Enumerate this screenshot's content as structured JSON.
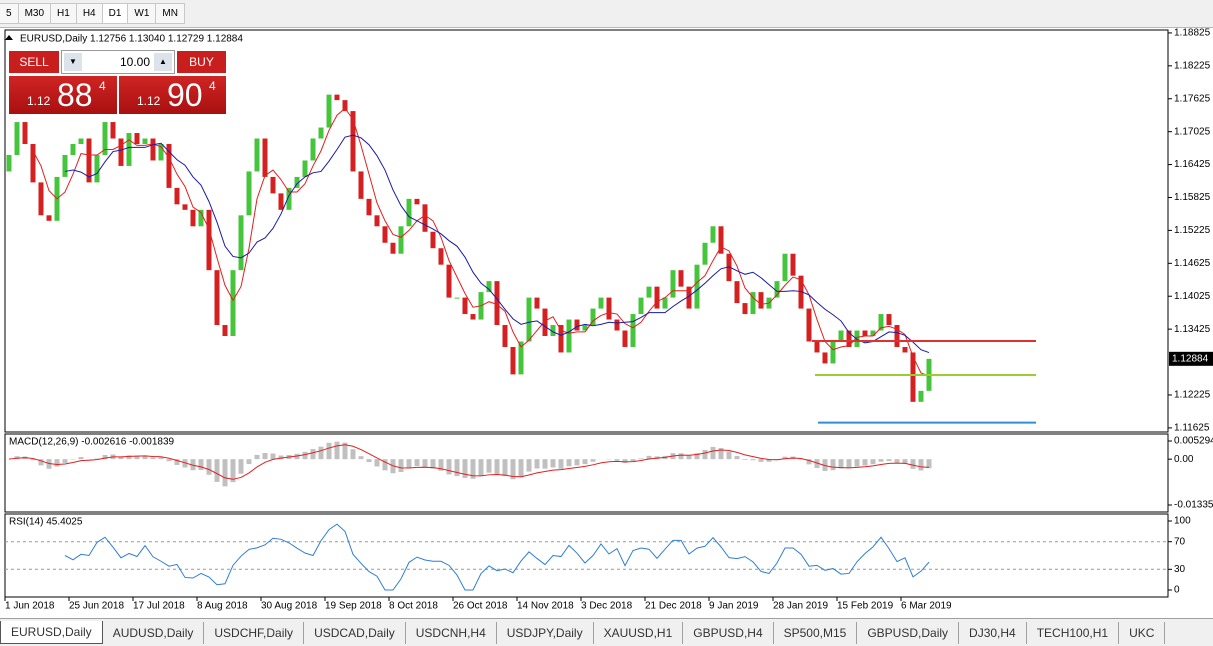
{
  "toolbar": {
    "timeframes": [
      "5",
      "M30",
      "H1",
      "H4",
      "D1",
      "W1",
      "MN"
    ]
  },
  "trade_panel": {
    "sell": "SELL",
    "buy": "BUY",
    "lot": "10.00",
    "bid": {
      "big": "1.12",
      "main": "88",
      "small": "4"
    },
    "ask": {
      "big": "1.12",
      "main": "90",
      "small": "4"
    }
  },
  "chart_data": {
    "type": "candlestick",
    "header": "EURUSD,Daily  1.12756 1.13040 1.12729 1.12884",
    "first_open": 1.163,
    "close": [
      1.166,
      1.172,
      1.168,
      1.161,
      1.155,
      1.154,
      1.162,
      1.166,
      1.168,
      1.169,
      1.161,
      1.166,
      1.172,
      1.169,
      1.164,
      1.17,
      1.168,
      1.169,
      1.165,
      1.168,
      1.16,
      1.157,
      1.156,
      1.153,
      1.156,
      1.145,
      1.135,
      1.133,
      1.145,
      1.155,
      1.163,
      1.169,
      1.162,
      1.159,
      1.156,
      1.16,
      1.162,
      1.165,
      1.169,
      1.171,
      1.177,
      1.176,
      1.174,
      1.163,
      1.158,
      1.155,
      1.153,
      1.15,
      1.148,
      1.153,
      1.158,
      1.157,
      1.152,
      1.149,
      1.146,
      1.14,
      1.14,
      1.137,
      1.136,
      1.141,
      1.143,
      1.135,
      1.131,
      1.126,
      1.132,
      1.14,
      1.138,
      1.133,
      1.135,
      1.13,
      1.136,
      1.134,
      1.135,
      1.138,
      1.14,
      1.136,
      1.134,
      1.131,
      1.137,
      1.14,
      1.142,
      1.138,
      1.14,
      1.145,
      1.142,
      1.138,
      1.146,
      1.15,
      1.153,
      1.148,
      1.143,
      1.139,
      1.137,
      1.141,
      1.138,
      1.14,
      1.143,
      1.148,
      1.144,
      1.138,
      1.132,
      1.13,
      1.128,
      1.132,
      1.134,
      1.131,
      1.134,
      1.133,
      1.134,
      1.137,
      1.135,
      1.131,
      1.13,
      1.121,
      1.123,
      1.12884
    ],
    "up_color": "#45c53c",
    "down_color": "#d42020",
    "ylim": [
      1.1155,
      1.1886
    ],
    "yticks": [
      1.18825,
      1.18225,
      1.17625,
      1.17025,
      1.16425,
      1.15825,
      1.15225,
      1.14625,
      1.14025,
      1.13425,
      1.12225,
      1.11625
    ],
    "last_price": 1.12884,
    "levels": [
      {
        "value": 1.1321,
        "color": "#e03030"
      },
      {
        "value": 1.1259,
        "color": "#9acd32"
      },
      {
        "value": 1.1172,
        "color": "#2f8fd8"
      }
    ],
    "x_labels": [
      "1 Jun 2018",
      "25 Jun 2018",
      "17 Jul 2018",
      "8 Aug 2018",
      "30 Aug 2018",
      "19 Sep 2018",
      "8 Oct 2018",
      "26 Oct 2018",
      "14 Nov 2018",
      "3 Dec 2018",
      "21 Dec 2018",
      "9 Jan 2019",
      "28 Jan 2019",
      "15 Feb 2019",
      "6 Mar 2019"
    ],
    "macd": {
      "header": "MACD(12,26,9) -0.002616 -0.001839",
      "ylim": [
        -0.013353,
        0.005294
      ],
      "yticks": [
        0.005294,
        {
          "value": 0,
          "label": "0.00"
        },
        -0.013353
      ]
    },
    "rsi": {
      "header": "RSI(14) 45.4025",
      "ylim": [
        0,
        100
      ],
      "yticks": [
        100,
        70,
        30,
        0
      ]
    }
  },
  "symbol_tabs": [
    "EURUSD,Daily",
    "AUDUSD,Daily",
    "USDCHF,Daily",
    "USDCAD,Daily",
    "USDCNH,H4",
    "USDJPY,Daily",
    "XAUUSD,H1",
    "GBPUSD,H4",
    "SP500,M15",
    "GBPUSD,Daily",
    "DJ30,H4",
    "TECH100,H1",
    "UKC"
  ]
}
